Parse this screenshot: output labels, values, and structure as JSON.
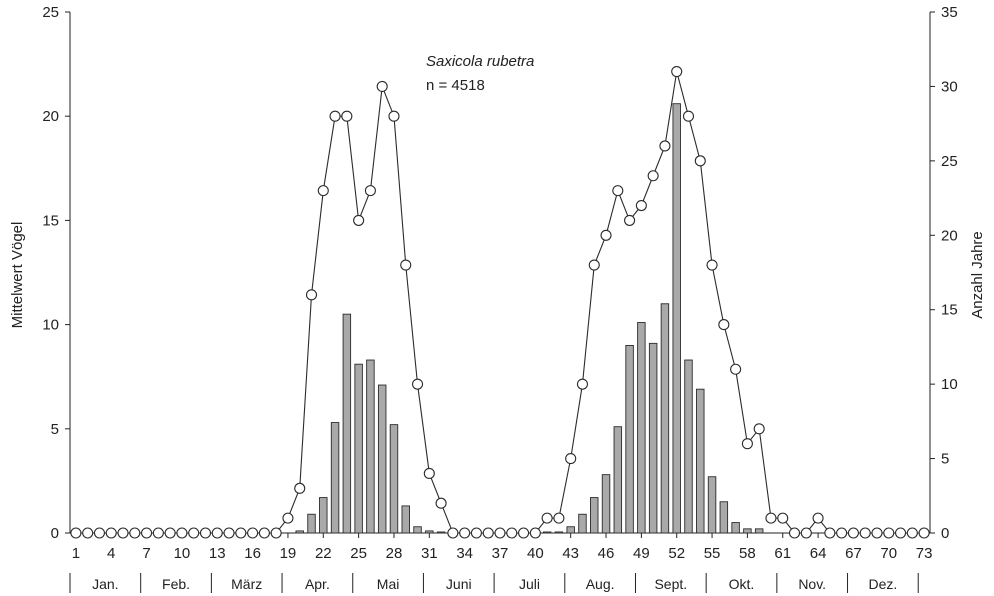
{
  "chart_data": {
    "type": "bar+line",
    "annotation": {
      "species": "Saxicola rubetra",
      "n_label": "n = 4518"
    },
    "ylabel_left": "Mittelwert Vögel",
    "ylabel_right": "Anzahl Jahre",
    "ylim_left": [
      0,
      25
    ],
    "ylim_right": [
      0,
      35
    ],
    "yticks_left": [
      0,
      5,
      10,
      15,
      20,
      25
    ],
    "yticks_right": [
      0,
      5,
      10,
      15,
      20,
      25,
      30,
      35
    ],
    "xlim": [
      1,
      73
    ],
    "xticks": [
      1,
      4,
      7,
      10,
      13,
      16,
      19,
      22,
      25,
      28,
      31,
      34,
      37,
      40,
      43,
      46,
      49,
      52,
      55,
      58,
      61,
      64,
      67,
      70,
      73
    ],
    "month_boundaries": [
      0.5,
      6.5,
      12.5,
      18.5,
      24.5,
      30.5,
      36.5,
      42.5,
      48.5,
      54.5,
      60.5,
      66.5,
      72.5
    ],
    "months": [
      {
        "label": "Jan.",
        "center": 3.5
      },
      {
        "label": "Feb.",
        "center": 9.5
      },
      {
        "label": "März",
        "center": 15.5
      },
      {
        "label": "Apr.",
        "center": 21.5
      },
      {
        "label": "Mai",
        "center": 27.5
      },
      {
        "label": "Juni",
        "center": 33.5
      },
      {
        "label": "Juli",
        "center": 39.5
      },
      {
        "label": "Aug.",
        "center": 45.5
      },
      {
        "label": "Sept.",
        "center": 51.5
      },
      {
        "label": "Okt.",
        "center": 57.5
      },
      {
        "label": "Nov.",
        "center": 63.5
      },
      {
        "label": "Dez.",
        "center": 69.5
      }
    ],
    "pentads": [
      1,
      2,
      3,
      4,
      5,
      6,
      7,
      8,
      9,
      10,
      11,
      12,
      13,
      14,
      15,
      16,
      17,
      18,
      19,
      20,
      21,
      22,
      23,
      24,
      25,
      26,
      27,
      28,
      29,
      30,
      31,
      32,
      33,
      34,
      35,
      36,
      37,
      38,
      39,
      40,
      41,
      42,
      43,
      44,
      45,
      46,
      47,
      48,
      49,
      50,
      51,
      52,
      53,
      54,
      55,
      56,
      57,
      58,
      59,
      60,
      61,
      62,
      63,
      64,
      65,
      66,
      67,
      68,
      69,
      70,
      71,
      72,
      73
    ],
    "bars_mean_birds": [
      0,
      0,
      0,
      0,
      0,
      0,
      0,
      0,
      0,
      0,
      0,
      0,
      0,
      0,
      0,
      0,
      0,
      0,
      0,
      0.1,
      0.9,
      1.7,
      5.3,
      10.5,
      8.1,
      8.3,
      7.1,
      5.2,
      1.3,
      0.3,
      0.1,
      0.05,
      0,
      0,
      0,
      0,
      0,
      0,
      0,
      0,
      0.05,
      0.05,
      0.3,
      0.9,
      1.7,
      2.8,
      5.1,
      9.0,
      10.1,
      9.1,
      11.0,
      20.6,
      8.3,
      6.9,
      2.7,
      1.5,
      0.5,
      0.2,
      0.2,
      0,
      0,
      0,
      0,
      0,
      0,
      0,
      0,
      0,
      0,
      0,
      0,
      0,
      0
    ],
    "line_years": [
      0,
      0,
      0,
      0,
      0,
      0,
      0,
      0,
      0,
      0,
      0,
      0,
      0,
      0,
      0,
      0,
      0,
      0,
      1,
      3,
      16,
      23,
      28,
      28,
      21,
      23,
      30,
      28,
      18,
      10,
      4,
      2,
      0,
      0,
      0,
      0,
      0,
      0,
      0,
      0,
      1,
      1,
      5,
      10,
      18,
      20,
      23,
      21,
      22,
      24,
      26,
      31,
      28,
      25,
      18,
      14,
      11,
      6,
      7,
      1,
      1,
      0,
      0,
      1,
      0,
      0,
      0,
      0,
      0,
      0,
      0,
      0,
      0
    ],
    "colors": {
      "bar_fill": "#a9a9a9",
      "bar_stroke": "#2b2b2b",
      "line": "#2b2b2b",
      "marker_fill": "#ffffff",
      "axis": "#222222"
    }
  }
}
